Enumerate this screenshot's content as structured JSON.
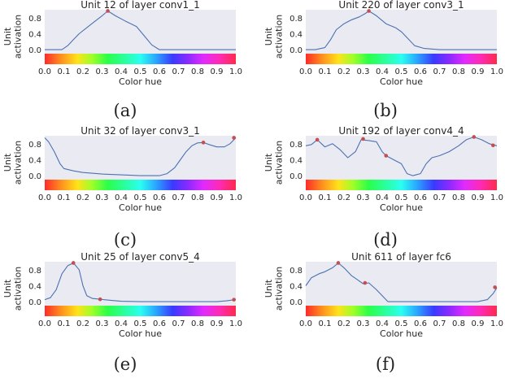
{
  "chart_data": [
    {
      "type": "line",
      "title": "Unit 12 of layer conv1_1",
      "xlabel": "Color hue",
      "ylabel": "Unit activation",
      "caption": "(a)",
      "xlim": [
        0,
        1
      ],
      "ylim": [
        -0.1,
        1.0
      ],
      "xticks": [
        "0.0",
        "0.1",
        "0.2",
        "0.3",
        "0.4",
        "0.5",
        "0.6",
        "0.7",
        "0.8",
        "0.9",
        "1.0"
      ],
      "yticks": [
        "0.0",
        "0.4",
        "0.8"
      ],
      "x": [
        0.0,
        0.05,
        0.09,
        0.12,
        0.15,
        0.18,
        0.22,
        0.26,
        0.3,
        0.33,
        0.37,
        0.42,
        0.48,
        0.52,
        0.56,
        0.6,
        0.65,
        0.75,
        0.85,
        1.0
      ],
      "values": [
        0.0,
        0.0,
        0.0,
        0.1,
        0.25,
        0.4,
        0.55,
        0.7,
        0.85,
        0.97,
        0.85,
        0.72,
        0.58,
        0.35,
        0.12,
        0.0,
        0.0,
        0.0,
        0.0,
        0.0
      ],
      "peaks": [
        [
          0.33,
          0.97
        ]
      ]
    },
    {
      "type": "line",
      "title": "Unit 220 of layer conv3_1",
      "xlabel": "Color hue",
      "ylabel": "Unit activation",
      "caption": "(b)",
      "xlim": [
        0,
        1
      ],
      "ylim": [
        -0.1,
        1.0
      ],
      "xticks": [
        "0.0",
        "0.1",
        "0.2",
        "0.3",
        "0.4",
        "0.5",
        "0.6",
        "0.7",
        "0.8",
        "0.9",
        "1.0"
      ],
      "yticks": [
        "0.0",
        "0.4",
        "0.8"
      ],
      "x": [
        0.0,
        0.05,
        0.1,
        0.13,
        0.16,
        0.2,
        0.24,
        0.28,
        0.31,
        0.33,
        0.37,
        0.42,
        0.47,
        0.5,
        0.53,
        0.57,
        0.62,
        0.7,
        0.8,
        0.9,
        1.0
      ],
      "values": [
        0.0,
        0.0,
        0.05,
        0.25,
        0.5,
        0.65,
        0.75,
        0.82,
        0.9,
        0.97,
        0.85,
        0.65,
        0.55,
        0.45,
        0.3,
        0.1,
        0.03,
        0.0,
        0.0,
        0.0,
        0.0
      ],
      "peaks": [
        [
          0.33,
          0.97
        ]
      ]
    },
    {
      "type": "line",
      "title": "Unit 32 of layer conv3_1",
      "xlabel": "Color hue",
      "ylabel": "Unit activation",
      "caption": "(c)",
      "xlim": [
        0,
        1
      ],
      "ylim": [
        -0.1,
        1.0
      ],
      "xticks": [
        "0.0",
        "0.1",
        "0.2",
        "0.3",
        "0.4",
        "0.5",
        "0.6",
        "0.7",
        "0.8",
        "0.9",
        "1.0"
      ],
      "yticks": [
        "0.0",
        "0.4",
        "0.8"
      ],
      "x": [
        0.0,
        0.02,
        0.05,
        0.08,
        0.1,
        0.15,
        0.2,
        0.3,
        0.4,
        0.5,
        0.6,
        0.64,
        0.68,
        0.71,
        0.74,
        0.77,
        0.8,
        0.83,
        0.86,
        0.9,
        0.94,
        0.97,
        1.0
      ],
      "values": [
        0.95,
        0.85,
        0.6,
        0.3,
        0.18,
        0.12,
        0.08,
        0.04,
        0.02,
        0.0,
        0.0,
        0.05,
        0.2,
        0.4,
        0.6,
        0.75,
        0.82,
        0.83,
        0.78,
        0.72,
        0.72,
        0.8,
        0.95
      ],
      "peaks": [
        [
          0.83,
          0.83
        ],
        [
          0.99,
          0.95
        ]
      ]
    },
    {
      "type": "line",
      "title": "Unit 192 of layer conv4_4",
      "xlabel": "Color hue",
      "ylabel": "Unit activation",
      "caption": "(d)",
      "xlim": [
        0,
        1
      ],
      "ylim": [
        -0.1,
        1.0
      ],
      "xticks": [
        "0.0",
        "0.1",
        "0.2",
        "0.3",
        "0.4",
        "0.5",
        "0.6",
        "0.7",
        "0.8",
        "0.9",
        "1.0"
      ],
      "yticks": [
        "0.0",
        "0.4",
        "0.8"
      ],
      "x": [
        0.0,
        0.03,
        0.06,
        0.1,
        0.14,
        0.18,
        0.22,
        0.26,
        0.29,
        0.33,
        0.37,
        0.4,
        0.42,
        0.46,
        0.5,
        0.53,
        0.56,
        0.6,
        0.63,
        0.66,
        0.7,
        0.75,
        0.8,
        0.84,
        0.88,
        0.92,
        0.96,
        1.0
      ],
      "values": [
        0.75,
        0.78,
        0.9,
        0.72,
        0.8,
        0.65,
        0.45,
        0.6,
        0.9,
        0.88,
        0.85,
        0.6,
        0.5,
        0.4,
        0.3,
        0.05,
        0.0,
        0.05,
        0.3,
        0.45,
        0.5,
        0.6,
        0.75,
        0.9,
        0.97,
        0.9,
        0.8,
        0.75
      ],
      "peaks": [
        [
          0.06,
          0.9
        ],
        [
          0.3,
          0.92
        ],
        [
          0.42,
          0.5
        ],
        [
          0.88,
          0.97
        ],
        [
          0.98,
          0.76
        ]
      ]
    },
    {
      "type": "line",
      "title": "Unit 25 of layer conv5_4",
      "xlabel": "Color hue",
      "ylabel": "Unit activation",
      "caption": "(e)",
      "xlim": [
        0,
        1
      ],
      "ylim": [
        -0.1,
        1.0
      ],
      "xticks": [
        "0.0",
        "0.1",
        "0.2",
        "0.3",
        "0.4",
        "0.5",
        "0.6",
        "0.7",
        "0.8",
        "0.9",
        "1.0"
      ],
      "yticks": [
        "0.0",
        "0.4",
        "0.8"
      ],
      "x": [
        0.0,
        0.03,
        0.06,
        0.09,
        0.12,
        0.15,
        0.18,
        0.2,
        0.22,
        0.25,
        0.29,
        0.35,
        0.4,
        0.5,
        0.6,
        0.7,
        0.8,
        0.9,
        0.95,
        1.0
      ],
      "values": [
        0.05,
        0.1,
        0.3,
        0.7,
        0.9,
        0.97,
        0.8,
        0.4,
        0.15,
        0.08,
        0.06,
        0.03,
        0.01,
        0.0,
        0.0,
        0.0,
        0.0,
        0.0,
        0.02,
        0.05
      ],
      "peaks": [
        [
          0.15,
          0.97
        ],
        [
          0.29,
          0.06
        ],
        [
          0.99,
          0.05
        ]
      ]
    },
    {
      "type": "line",
      "title": "Unit 611 of layer fc6",
      "xlabel": "Color hue",
      "ylabel": "Unit activation",
      "caption": "(f)",
      "xlim": [
        0,
        1
      ],
      "ylim": [
        -0.1,
        1.0
      ],
      "xticks": [
        "0.0",
        "0.1",
        "0.2",
        "0.3",
        "0.4",
        "0.5",
        "0.6",
        "0.7",
        "0.8",
        "0.9",
        "1.0"
      ],
      "yticks": [
        "0.0",
        "0.4",
        "0.8"
      ],
      "x": [
        0.0,
        0.03,
        0.07,
        0.1,
        0.14,
        0.17,
        0.2,
        0.24,
        0.27,
        0.3,
        0.33,
        0.37,
        0.4,
        0.43,
        0.5,
        0.6,
        0.7,
        0.8,
        0.9,
        0.95,
        0.98,
        1.0
      ],
      "values": [
        0.4,
        0.6,
        0.7,
        0.75,
        0.85,
        0.97,
        0.85,
        0.65,
        0.55,
        0.45,
        0.47,
        0.3,
        0.15,
        0.0,
        0.0,
        0.0,
        0.0,
        0.0,
        0.0,
        0.05,
        0.2,
        0.35
      ],
      "peaks": [
        [
          0.17,
          0.97
        ],
        [
          0.31,
          0.47
        ],
        [
          0.99,
          0.36
        ]
      ]
    }
  ]
}
